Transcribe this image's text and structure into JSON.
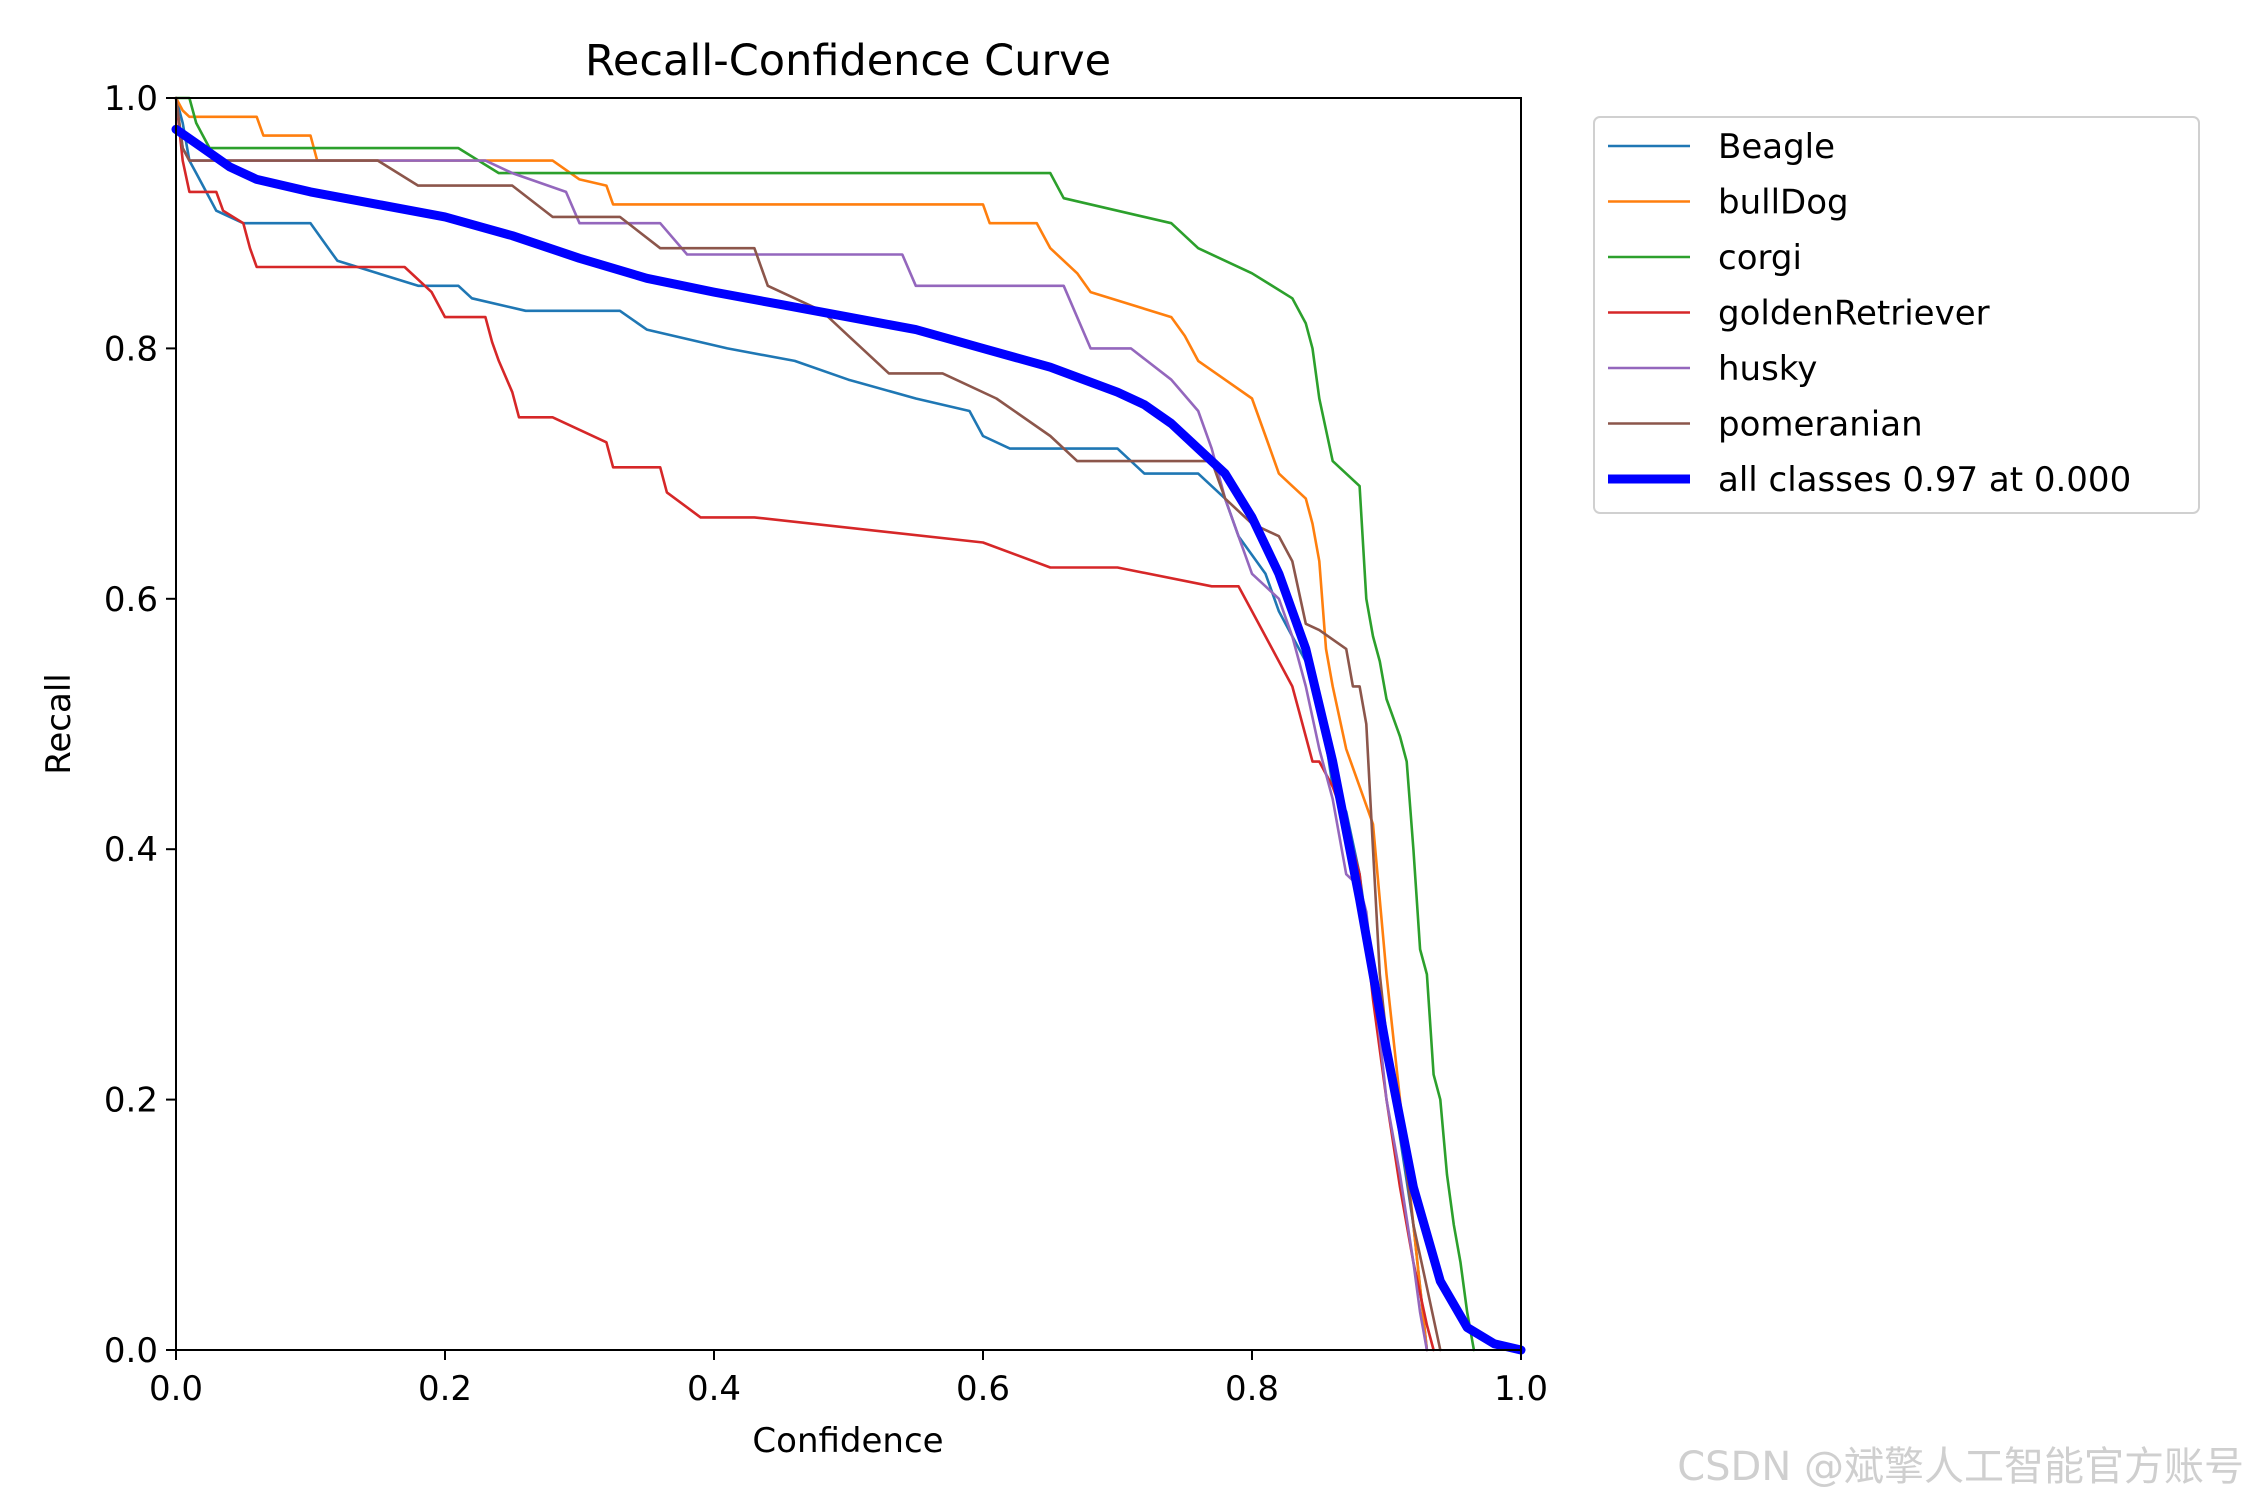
{
  "chart_data": {
    "type": "line",
    "title": "Recall-Confidence Curve",
    "xlabel": "Confidence",
    "ylabel": "Recall",
    "xlim": [
      0.0,
      1.0
    ],
    "ylim": [
      0.0,
      1.0
    ],
    "xticks": [
      "0.0",
      "0.2",
      "0.4",
      "0.6",
      "0.8",
      "1.0"
    ],
    "yticks": [
      "0.0",
      "0.2",
      "0.4",
      "0.6",
      "0.8",
      "1.0"
    ],
    "grid": false,
    "legend_position": "outside upper right",
    "series": [
      {
        "name": "Beagle",
        "color": "#1f77b4",
        "x": [
          0,
          0.005,
          0.01,
          0.015,
          0.02,
          0.025,
          0.03,
          0.04,
          0.05,
          0.1,
          0.11,
          0.12,
          0.15,
          0.18,
          0.21,
          0.22,
          0.26,
          0.33,
          0.35,
          0.41,
          0.46,
          0.5,
          0.55,
          0.59,
          0.6,
          0.62,
          0.7,
          0.72,
          0.76,
          0.78,
          0.79,
          0.81,
          0.82,
          0.83,
          0.84,
          0.85,
          0.86,
          0.87,
          0.88,
          0.89,
          0.9,
          0.91,
          0.92,
          0.925,
          0.93
        ],
        "y": [
          1.0,
          0.98,
          0.95,
          0.94,
          0.93,
          0.92,
          0.91,
          0.905,
          0.9,
          0.9,
          0.885,
          0.87,
          0.86,
          0.85,
          0.85,
          0.84,
          0.83,
          0.83,
          0.815,
          0.8,
          0.79,
          0.775,
          0.76,
          0.75,
          0.73,
          0.72,
          0.72,
          0.7,
          0.7,
          0.68,
          0.65,
          0.62,
          0.59,
          0.57,
          0.55,
          0.52,
          0.45,
          0.43,
          0.38,
          0.3,
          0.25,
          0.17,
          0.1,
          0.05,
          0.0
        ]
      },
      {
        "name": "bullDog",
        "color": "#ff7f0e",
        "x": [
          0,
          0.005,
          0.01,
          0.06,
          0.065,
          0.1,
          0.105,
          0.2,
          0.28,
          0.3,
          0.32,
          0.325,
          0.6,
          0.605,
          0.64,
          0.65,
          0.67,
          0.68,
          0.74,
          0.75,
          0.76,
          0.8,
          0.81,
          0.82,
          0.83,
          0.84,
          0.845,
          0.85,
          0.855,
          0.86,
          0.87,
          0.88,
          0.89,
          0.9,
          0.91,
          0.92,
          0.925,
          0.93
        ],
        "y": [
          1.0,
          0.99,
          0.985,
          0.985,
          0.97,
          0.97,
          0.95,
          0.95,
          0.95,
          0.935,
          0.93,
          0.915,
          0.915,
          0.9,
          0.9,
          0.88,
          0.86,
          0.845,
          0.825,
          0.81,
          0.79,
          0.76,
          0.73,
          0.7,
          0.69,
          0.68,
          0.66,
          0.63,
          0.56,
          0.53,
          0.48,
          0.45,
          0.42,
          0.3,
          0.2,
          0.1,
          0.05,
          0.0
        ]
      },
      {
        "name": "corgi",
        "color": "#2ca02c",
        "x": [
          0,
          0.005,
          0.01,
          0.015,
          0.02,
          0.025,
          0.2,
          0.21,
          0.24,
          0.3,
          0.65,
          0.66,
          0.74,
          0.76,
          0.8,
          0.83,
          0.84,
          0.845,
          0.85,
          0.86,
          0.88,
          0.885,
          0.89,
          0.895,
          0.9,
          0.91,
          0.915,
          0.92,
          0.925,
          0.93,
          0.935,
          0.94,
          0.945,
          0.95,
          0.955,
          0.96,
          0.965
        ],
        "y": [
          1.0,
          1.0,
          1.0,
          0.98,
          0.97,
          0.96,
          0.96,
          0.96,
          0.94,
          0.94,
          0.94,
          0.92,
          0.9,
          0.88,
          0.86,
          0.84,
          0.82,
          0.8,
          0.76,
          0.71,
          0.69,
          0.6,
          0.57,
          0.55,
          0.52,
          0.49,
          0.47,
          0.4,
          0.32,
          0.3,
          0.22,
          0.2,
          0.14,
          0.1,
          0.07,
          0.03,
          0.0
        ]
      },
      {
        "name": "goldenRetriever",
        "color": "#d62728",
        "x": [
          0,
          0.005,
          0.01,
          0.03,
          0.035,
          0.05,
          0.055,
          0.06,
          0.13,
          0.17,
          0.19,
          0.2,
          0.23,
          0.235,
          0.24,
          0.25,
          0.255,
          0.26,
          0.28,
          0.32,
          0.325,
          0.36,
          0.365,
          0.39,
          0.43,
          0.6,
          0.65,
          0.7,
          0.77,
          0.79,
          0.8,
          0.81,
          0.82,
          0.83,
          0.835,
          0.84,
          0.845,
          0.85,
          0.86,
          0.87,
          0.88,
          0.89,
          0.9,
          0.91,
          0.92,
          0.93,
          0.935
        ],
        "y": [
          1.0,
          0.95,
          0.925,
          0.925,
          0.91,
          0.9,
          0.88,
          0.865,
          0.865,
          0.865,
          0.845,
          0.825,
          0.825,
          0.805,
          0.79,
          0.765,
          0.745,
          0.745,
          0.745,
          0.725,
          0.705,
          0.705,
          0.685,
          0.665,
          0.665,
          0.645,
          0.625,
          0.625,
          0.61,
          0.61,
          0.59,
          0.57,
          0.55,
          0.53,
          0.51,
          0.49,
          0.47,
          0.47,
          0.45,
          0.42,
          0.38,
          0.28,
          0.2,
          0.13,
          0.07,
          0.02,
          0.0
        ]
      },
      {
        "name": "husky",
        "color": "#9467bd",
        "x": [
          0,
          0.005,
          0.01,
          0.23,
          0.25,
          0.29,
          0.3,
          0.36,
          0.38,
          0.54,
          0.55,
          0.66,
          0.68,
          0.71,
          0.74,
          0.76,
          0.77,
          0.78,
          0.79,
          0.8,
          0.81,
          0.82,
          0.83,
          0.84,
          0.85,
          0.86,
          0.87,
          0.88,
          0.885,
          0.89,
          0.9,
          0.91,
          0.92,
          0.925,
          0.93
        ],
        "y": [
          1.0,
          0.96,
          0.95,
          0.95,
          0.94,
          0.925,
          0.9,
          0.9,
          0.875,
          0.875,
          0.85,
          0.85,
          0.8,
          0.8,
          0.775,
          0.75,
          0.72,
          0.68,
          0.65,
          0.62,
          0.61,
          0.6,
          0.57,
          0.53,
          0.48,
          0.44,
          0.38,
          0.37,
          0.35,
          0.3,
          0.2,
          0.14,
          0.07,
          0.03,
          0.0
        ]
      },
      {
        "name": "pomeranian",
        "color": "#8c564b",
        "x": [
          0,
          0.005,
          0.01,
          0.15,
          0.18,
          0.25,
          0.28,
          0.33,
          0.36,
          0.43,
          0.44,
          0.48,
          0.5,
          0.51,
          0.53,
          0.57,
          0.61,
          0.65,
          0.67,
          0.77,
          0.78,
          0.8,
          0.82,
          0.83,
          0.84,
          0.85,
          0.87,
          0.875,
          0.88,
          0.885,
          0.89,
          0.895,
          0.9,
          0.91,
          0.92,
          0.93,
          0.94
        ],
        "y": [
          1.0,
          0.96,
          0.95,
          0.95,
          0.93,
          0.93,
          0.905,
          0.905,
          0.88,
          0.88,
          0.85,
          0.83,
          0.81,
          0.8,
          0.78,
          0.78,
          0.76,
          0.73,
          0.71,
          0.71,
          0.68,
          0.66,
          0.65,
          0.63,
          0.58,
          0.575,
          0.56,
          0.53,
          0.53,
          0.5,
          0.4,
          0.3,
          0.25,
          0.18,
          0.1,
          0.05,
          0.0
        ]
      },
      {
        "name": "all classes 0.97 at 0.000",
        "color": "#0000ff",
        "x": [
          0,
          0.02,
          0.04,
          0.06,
          0.08,
          0.1,
          0.15,
          0.2,
          0.25,
          0.3,
          0.35,
          0.4,
          0.45,
          0.5,
          0.55,
          0.6,
          0.65,
          0.7,
          0.72,
          0.74,
          0.76,
          0.78,
          0.8,
          0.82,
          0.84,
          0.86,
          0.88,
          0.9,
          0.92,
          0.94,
          0.96,
          0.98,
          1.0
        ],
        "y": [
          0.975,
          0.96,
          0.945,
          0.935,
          0.93,
          0.925,
          0.915,
          0.905,
          0.89,
          0.872,
          0.856,
          0.845,
          0.835,
          0.825,
          0.815,
          0.8,
          0.785,
          0.765,
          0.755,
          0.74,
          0.72,
          0.7,
          0.665,
          0.62,
          0.56,
          0.47,
          0.36,
          0.24,
          0.13,
          0.055,
          0.018,
          0.005,
          0.0
        ]
      }
    ]
  },
  "watermark": "CSDN @斌擎人工智能官方账号"
}
